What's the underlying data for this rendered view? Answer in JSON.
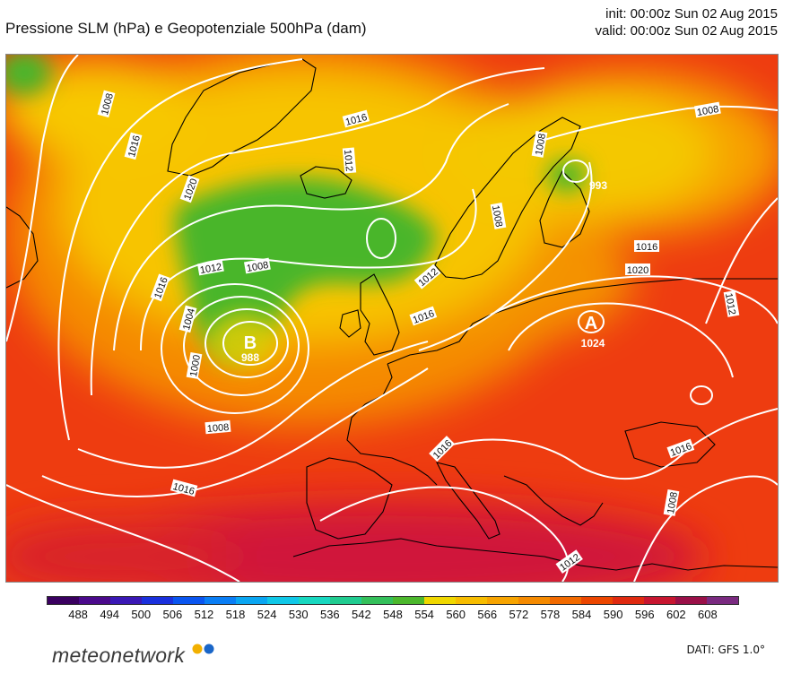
{
  "header": {
    "title": "Pressione SLM (hPa) e Geopotenziale 500hPa (dam)",
    "init": "init: 00:00z Sun 02 Aug 2015",
    "valid": "valid: 00:00z Sun 02 Aug 2015"
  },
  "map": {
    "low_center": {
      "letter": "B",
      "value": "988"
    },
    "high_center": {
      "letter": "A",
      "value": "1024"
    },
    "low_minor": {
      "value": "993"
    },
    "isobar_labels": [
      "1008",
      "1016",
      "1020",
      "1016",
      "1012",
      "1008",
      "1004",
      "1000",
      "1008",
      "1016",
      "1012",
      "1016",
      "1012",
      "1008",
      "1016",
      "1020",
      "1008",
      "1012",
      "1016",
      "1016",
      "1008",
      "1012",
      "1016",
      "1008"
    ]
  },
  "legend": {
    "labels": [
      "488",
      "494",
      "500",
      "506",
      "512",
      "518",
      "524",
      "530",
      "536",
      "542",
      "548",
      "554",
      "560",
      "566",
      "572",
      "578",
      "584",
      "590",
      "596",
      "602",
      "608"
    ],
    "colors": [
      "#3a0060",
      "#4b0a8c",
      "#3a18b5",
      "#1a30dd",
      "#0a55f0",
      "#0a7ef5",
      "#0aa6f2",
      "#10c8e8",
      "#18d8c0",
      "#20cc90",
      "#34c05a",
      "#4cb82c",
      "#f0d800",
      "#f7bd00",
      "#f7a400",
      "#f58a00",
      "#f26a00",
      "#ec4600",
      "#e02a10",
      "#c81630",
      "#9a1048",
      "#7a2a80"
    ]
  },
  "footer": {
    "brand": "meteonetwork",
    "source": "DATI:  GFS  1.0°"
  }
}
